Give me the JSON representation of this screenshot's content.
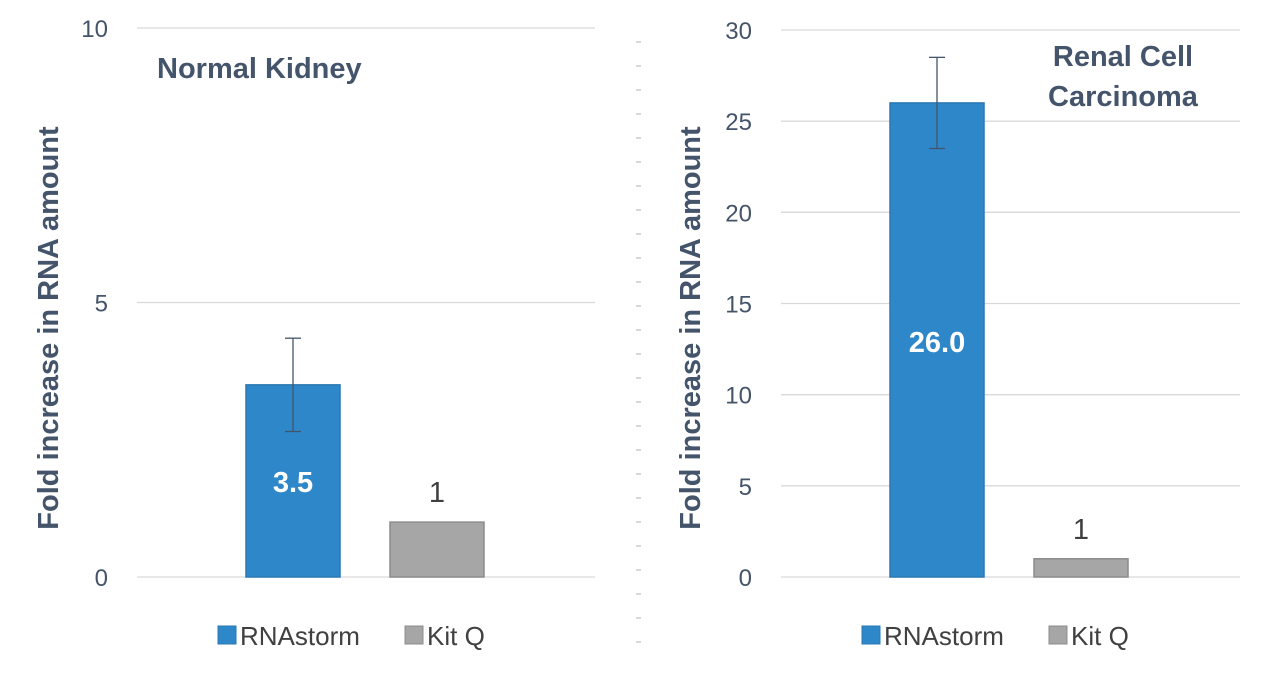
{
  "colors": {
    "rnastorm": "#2e87c9",
    "kitq": "#a6a6a6",
    "grid": "#d9d9d9",
    "text": "#44546a",
    "errorbar": "#44546a"
  },
  "chart_data": [
    {
      "type": "bar",
      "title": "Normal Kidney",
      "ylabel": "Fold increase in RNA amount",
      "xlabel": "",
      "ylim": [
        0,
        10
      ],
      "yticks": [
        0,
        5,
        10
      ],
      "grid": true,
      "legend_position": "bottom",
      "series": [
        {
          "name": "RNAstorm",
          "value": 3.5,
          "error": [
            2.65,
            4.35
          ],
          "label": "3.5",
          "label_position": "inside"
        },
        {
          "name": "Kit Q",
          "value": 1,
          "label": "1",
          "label_position": "above"
        }
      ]
    },
    {
      "type": "bar",
      "title_lines": [
        "Renal Cell",
        "Carcinoma"
      ],
      "ylabel": "Fold increase in RNA amount",
      "xlabel": "",
      "ylim": [
        0,
        30
      ],
      "yticks": [
        0,
        5,
        10,
        15,
        20,
        25,
        30
      ],
      "grid": true,
      "legend_position": "bottom",
      "series": [
        {
          "name": "RNAstorm",
          "value": 26.0,
          "error": [
            23.5,
            28.5
          ],
          "label": "26.0",
          "label_position": "inside"
        },
        {
          "name": "Kit Q",
          "value": 1,
          "label": "1",
          "label_position": "above"
        }
      ]
    }
  ]
}
